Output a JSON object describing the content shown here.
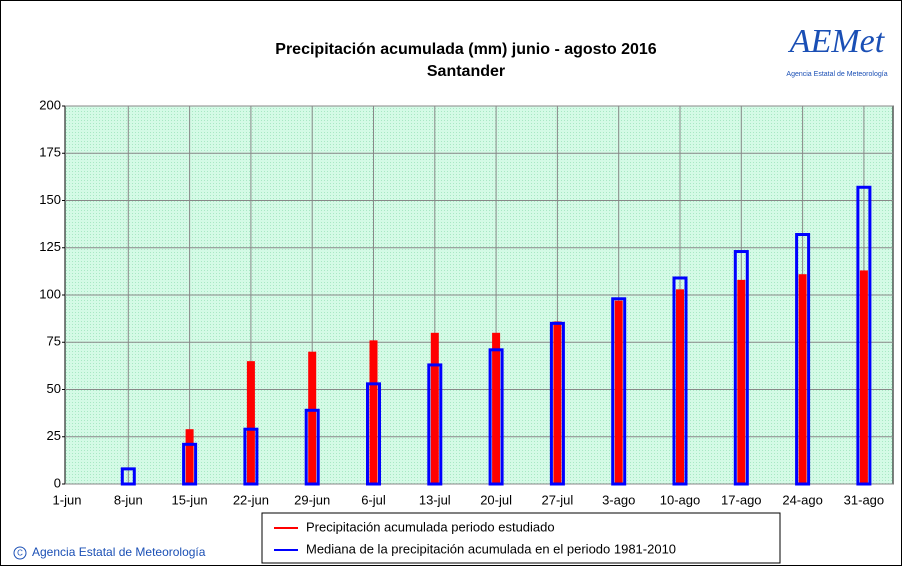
{
  "chart_data": {
    "type": "bar",
    "title": "Precipitación acumulada (mm) junio - agosto 2016",
    "subtitle": "Santander",
    "logo": "AEMet",
    "logo_caption": "Agencia Estatal de Meteorología",
    "footer": "Agencia Estatal de Meteorología",
    "categories": [
      "1-jun",
      "8-jun",
      "15-jun",
      "22-jun",
      "29-jun",
      "6-jul",
      "13-jul",
      "20-jul",
      "27-jul",
      "3-ago",
      "10-ago",
      "17-ago",
      "24-ago",
      "31-ago"
    ],
    "series": [
      {
        "name": "Precipitación acumulada periodo estudiado",
        "color": "#ff0000",
        "values": [
          0,
          0,
          29,
          65,
          70,
          76,
          80,
          80,
          86,
          97,
          103,
          108,
          111,
          113
        ]
      },
      {
        "name": "Mediana de la precipitación acumulada en el periodo 1981-2010",
        "color": "#0000ff",
        "values": [
          0,
          8,
          21,
          29,
          39,
          53,
          63,
          71,
          85,
          98,
          109,
          123,
          132,
          157
        ]
      }
    ],
    "ylim": [
      0,
      200
    ],
    "yticks": [
      0,
      25,
      50,
      75,
      100,
      125,
      150,
      175,
      200
    ],
    "grid": true
  }
}
